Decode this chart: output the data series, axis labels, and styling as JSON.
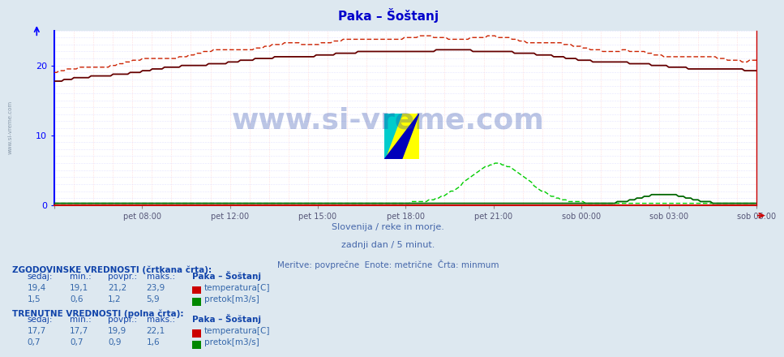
{
  "title": "Paka – Šoštanj",
  "title_color": "#0000cc",
  "bg_color": "#dde8f0",
  "plot_bg_color": "#ffffff",
  "grid_color_v": "#ffcccc",
  "grid_color_h": "#ccccff",
  "axis_color_left": "#0000ff",
  "axis_color_bottom": "#cc0000",
  "x_labels": [
    "pet 08:00",
    "pet 12:00",
    "pet 15:00",
    "pet 18:00",
    "pet 21:00",
    "sob 00:00",
    "sob 03:00",
    "sob 06:00"
  ],
  "y_ticks": [
    0,
    10,
    20
  ],
  "ylim": [
    0,
    25
  ],
  "n_points": 288,
  "temp_hist_color": "#cc2200",
  "temp_curr_color": "#660000",
  "flow_hist_color": "#00cc00",
  "flow_curr_color": "#006600",
  "subtitle1": "Slovenija / reke in morje.",
  "subtitle2": "zadnji dan / 5 minut.",
  "subtitle3": "Meritve: povprečne  Enote: metrične  Črta: minmum",
  "subtitle_color": "#4466aa",
  "table_header_color": "#1144aa",
  "table_value_color": "#3366aa",
  "watermark_text": "www.si-vreme.com",
  "watermark_color": "#2244aa",
  "sidebar_text": "www.si-vreme.com",
  "sidebar_color": "#8899aa"
}
